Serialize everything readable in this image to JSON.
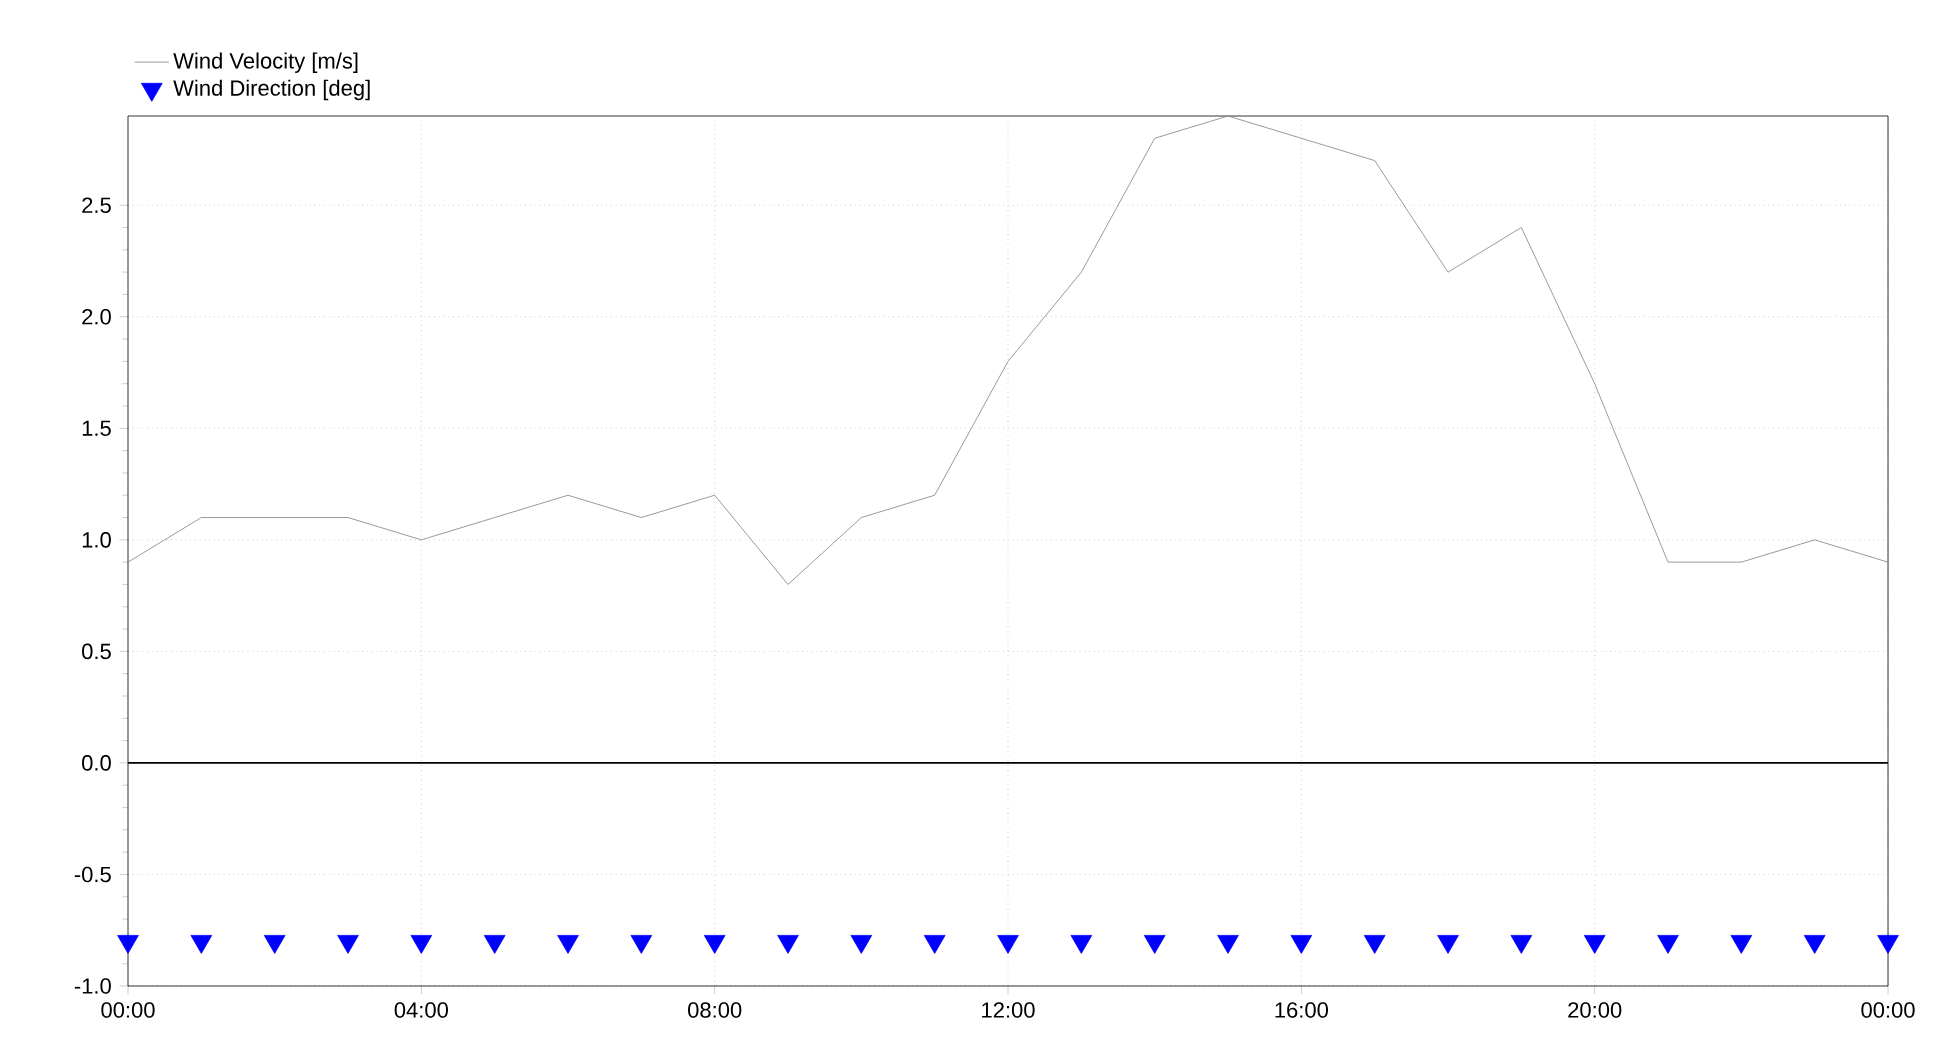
{
  "chart_data": {
    "type": "line",
    "x": [
      0,
      1,
      2,
      3,
      4,
      5,
      6,
      7,
      8,
      9,
      10,
      11,
      12,
      13,
      14,
      15,
      16,
      17,
      18,
      19,
      20,
      21,
      22,
      23,
      24
    ],
    "series": [
      {
        "name": "Wind Velocity  [m/s]",
        "color": "#808080",
        "values": [
          0.9,
          1.1,
          1.1,
          1.1,
          1.0,
          1.1,
          1.2,
          1.1,
          1.2,
          0.8,
          1.1,
          1.2,
          1.8,
          2.2,
          2.8,
          2.9,
          2.8,
          2.7,
          2.2,
          2.4,
          1.7,
          0.9,
          0.9,
          1.0,
          0.9
        ]
      },
      {
        "name": "Wind Direction [deg]",
        "type": "scatter",
        "marker": "triangle",
        "color": "#0000ff",
        "values": [
          -0.8,
          -0.8,
          -0.8,
          -0.8,
          -0.8,
          -0.8,
          -0.8,
          -0.8,
          -0.8,
          -0.8,
          -0.8,
          -0.8,
          -0.8,
          -0.8,
          -0.8,
          -0.8,
          -0.8,
          -0.8,
          -0.8,
          -0.8,
          -0.8,
          -0.8,
          -0.8,
          -0.8,
          -0.8
        ]
      }
    ],
    "xlim": [
      0,
      24
    ],
    "xticks": [
      {
        "value": 0,
        "label": "00:00"
      },
      {
        "value": 4,
        "label": "04:00"
      },
      {
        "value": 8,
        "label": "08:00"
      },
      {
        "value": 12,
        "label": "12:00"
      },
      {
        "value": 16,
        "label": "16:00"
      },
      {
        "value": 20,
        "label": "20:00"
      },
      {
        "value": 24,
        "label": "00:00"
      }
    ],
    "ylim": [
      -1,
      2.9
    ],
    "yticks": [
      {
        "value": -1,
        "label": "-1.0"
      },
      {
        "value": -0.5,
        "label": "-0.5"
      },
      {
        "value": 0,
        "label": "0.0"
      },
      {
        "value": 0.5,
        "label": "0.5"
      },
      {
        "value": 1,
        "label": "1.0"
      },
      {
        "value": 1.5,
        "label": "1.5"
      },
      {
        "value": 2,
        "label": "2.0"
      },
      {
        "value": 2.5,
        "label": "2.5"
      }
    ],
    "grid": true,
    "legend": "top left",
    "ref_lines": [
      {
        "axis": "y",
        "value": 0,
        "color": "#000000"
      }
    ]
  }
}
